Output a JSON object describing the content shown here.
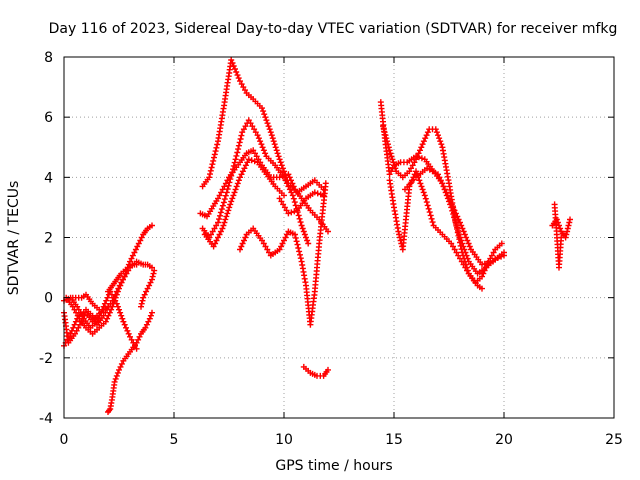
{
  "chart_data": {
    "type": "scatter",
    "title": "Day 116 of 2023, Sidereal Day-to-day VTEC variation (SDTVAR) for receiver mfkg",
    "xlabel": "GPS time / hours",
    "ylabel": "SDTVAR / TECUs",
    "xlim": [
      0,
      25
    ],
    "ylim": [
      -4,
      8
    ],
    "x_ticks": [
      0,
      5,
      10,
      15,
      20,
      25
    ],
    "y_ticks": [
      -4,
      -2,
      0,
      2,
      4,
      6,
      8
    ],
    "x_tick_labels": [
      "0",
      "5",
      "10",
      "15",
      "20",
      "25"
    ],
    "y_tick_labels": [
      "-4",
      "-2",
      "0",
      "2",
      "4",
      "6",
      "8"
    ],
    "grid": true,
    "legend": "none",
    "marker": "+",
    "color": "#ff0000",
    "series": [
      {
        "x": [
          0.0,
          0.2,
          0.5,
          0.8,
          1.0,
          1.3,
          1.5,
          1.8,
          2.0
        ],
        "y": [
          -0.5,
          -1.5,
          -1.2,
          -0.8,
          -0.5,
          -0.8,
          -0.6,
          -0.4,
          -0.3
        ]
      },
      {
        "x": [
          0.0,
          0.3,
          0.6,
          1.0,
          1.3,
          1.5,
          1.8,
          2.2,
          2.6,
          3.0,
          3.3,
          3.6,
          3.8,
          4.0
        ],
        "y": [
          -1.6,
          -1.2,
          -0.7,
          -0.4,
          -0.6,
          -0.9,
          -0.6,
          -0.1,
          0.5,
          1.0,
          1.2,
          1.1,
          1.1,
          1.0
        ]
      },
      {
        "x": [
          0.1,
          0.4,
          0.7,
          1.0,
          1.3,
          1.6,
          1.9,
          2.2,
          2.5,
          2.8,
          3.0,
          3.2,
          3.4,
          3.6,
          3.8,
          4.0
        ],
        "y": [
          0.0,
          -0.3,
          -0.7,
          -1.0,
          -1.2,
          -1.0,
          -0.8,
          -0.3,
          0.3,
          0.8,
          1.2,
          1.5,
          1.8,
          2.1,
          2.3,
          2.4
        ]
      },
      {
        "x": [
          0.0,
          0.3,
          0.6,
          0.9,
          1.2,
          1.5,
          1.8,
          2.1,
          2.4,
          2.7,
          3.0,
          3.3
        ],
        "y": [
          -0.1,
          0.0,
          -0.3,
          -0.7,
          -1.0,
          -0.8,
          -0.3,
          0.2,
          -0.2,
          -0.8,
          -1.3,
          -1.7
        ]
      },
      {
        "x": [
          0.4,
          0.8,
          1.0,
          1.3,
          1.6
        ],
        "y": [
          0.0,
          0.0,
          0.1,
          -0.2,
          -0.4
        ]
      },
      {
        "x": [
          2.0,
          2.2,
          2.4,
          2.6,
          2.9,
          3.1,
          3.3
        ],
        "y": [
          0.2,
          0.4,
          0.6,
          0.8,
          1.0,
          1.1,
          1.1
        ]
      },
      {
        "x": [
          2.0,
          2.1,
          2.2,
          2.3,
          2.5,
          2.7,
          3.0,
          3.3,
          3.5,
          3.7,
          3.9,
          4.0
        ],
        "y": [
          -3.8,
          -3.7,
          -3.3,
          -2.8,
          -2.4,
          -2.1,
          -1.8,
          -1.5,
          -1.2,
          -1.0,
          -0.7,
          -0.5
        ]
      },
      {
        "x": [
          3.5,
          3.6,
          3.8,
          4.0,
          4.1
        ],
        "y": [
          -0.3,
          0.0,
          0.3,
          0.6,
          0.9
        ]
      },
      {
        "x": [
          6.2,
          6.5,
          7.0,
          7.5,
          8.0,
          8.3,
          8.6,
          9.0,
          9.4,
          9.8,
          10.2,
          10.5,
          10.8,
          11.2,
          11.6,
          12.0
        ],
        "y": [
          2.8,
          2.7,
          3.3,
          4.0,
          4.5,
          4.8,
          4.9,
          4.4,
          4.0,
          4.0,
          4.1,
          3.6,
          3.3,
          2.9,
          2.6,
          2.2
        ]
      },
      {
        "x": [
          6.3,
          6.6,
          7.0,
          7.3,
          7.6,
          8.0,
          8.3,
          8.6,
          9.0,
          9.4,
          9.8,
          10.2,
          10.6,
          11.0,
          11.4,
          11.8
        ],
        "y": [
          3.7,
          4.0,
          5.2,
          6.5,
          7.9,
          7.2,
          6.8,
          6.6,
          6.3,
          5.5,
          4.6,
          3.8,
          3.5,
          3.7,
          3.9,
          3.6
        ]
      },
      {
        "x": [
          6.3,
          6.6,
          7.0,
          7.4,
          7.8,
          8.1,
          8.4,
          8.8,
          9.2,
          9.6,
          10.0,
          10.4,
          10.8,
          11.1
        ],
        "y": [
          2.3,
          2.0,
          2.5,
          3.5,
          4.6,
          5.5,
          5.9,
          5.4,
          4.7,
          4.4,
          4.0,
          3.4,
          2.4,
          1.8
        ]
      },
      {
        "x": [
          6.4,
          6.8,
          7.2,
          7.6,
          8.0,
          8.4,
          8.8,
          9.2,
          9.6,
          10.0
        ],
        "y": [
          2.1,
          1.7,
          2.3,
          3.2,
          4.0,
          4.6,
          4.5,
          4.1,
          3.7,
          3.4
        ]
      },
      {
        "x": [
          8.0,
          8.3,
          8.6,
          9.0,
          9.4,
          9.8,
          10.2,
          10.5,
          10.8,
          11.0,
          11.2,
          11.4,
          11.6,
          11.9
        ],
        "y": [
          1.6,
          2.1,
          2.3,
          1.9,
          1.4,
          1.6,
          2.2,
          2.1,
          1.2,
          0.4,
          -0.9,
          0.2,
          1.8,
          3.8
        ]
      },
      {
        "x": [
          9.8,
          10.2,
          10.6,
          11.0,
          11.4,
          11.8
        ],
        "y": [
          3.3,
          2.8,
          2.9,
          3.3,
          3.5,
          3.4
        ]
      },
      {
        "x": [
          10.9,
          11.2,
          11.5,
          11.8,
          12.0
        ],
        "y": [
          -2.3,
          -2.5,
          -2.6,
          -2.6,
          -2.4
        ]
      },
      {
        "x": [
          14.4,
          14.6,
          14.8,
          15.0,
          15.3,
          15.6,
          16.0,
          16.4,
          16.8,
          17.2,
          17.6,
          18.0,
          18.4,
          18.8,
          19.2,
          19.6,
          20.0
        ],
        "y": [
          6.5,
          5.2,
          4.1,
          4.4,
          4.5,
          4.5,
          4.7,
          4.6,
          4.2,
          3.8,
          3.0,
          2.0,
          1.2,
          0.8,
          1.0,
          1.3,
          1.4
        ]
      },
      {
        "x": [
          14.5,
          14.8,
          15.1,
          15.4,
          15.7,
          16.0,
          16.3,
          16.6,
          16.9,
          17.2,
          17.5,
          17.8,
          18.1,
          18.4,
          18.7,
          19.0,
          19.3,
          19.6,
          19.9
        ],
        "y": [
          5.7,
          4.9,
          4.2,
          4.0,
          4.2,
          4.6,
          5.1,
          5.6,
          5.6,
          5.0,
          3.8,
          2.5,
          1.5,
          0.8,
          0.5,
          0.7,
          1.2,
          1.6,
          1.8
        ]
      },
      {
        "x": [
          14.8,
          15.0,
          15.2,
          15.4,
          15.7,
          16.0,
          16.4,
          16.8,
          17.2,
          17.6,
          18.0,
          18.4,
          18.8,
          19.0
        ],
        "y": [
          3.9,
          3.0,
          2.2,
          1.6,
          3.7,
          4.2,
          3.4,
          2.4,
          2.1,
          1.8,
          1.3,
          0.8,
          0.4,
          0.3
        ]
      },
      {
        "x": [
          15.5,
          16.0,
          16.5,
          17.0,
          17.5,
          18.0,
          18.5,
          19.0,
          19.5,
          20.0
        ],
        "y": [
          3.6,
          4.0,
          4.3,
          4.1,
          3.3,
          2.5,
          1.6,
          1.1,
          1.2,
          1.5
        ]
      },
      {
        "x": [
          22.2,
          22.4,
          22.6,
          22.8,
          23.0
        ],
        "y": [
          2.4,
          2.6,
          2.2,
          2.0,
          2.6
        ]
      },
      {
        "x": [
          22.3,
          22.4,
          22.5,
          22.6
        ],
        "y": [
          3.1,
          2.1,
          1.0,
          2.0
        ]
      }
    ]
  }
}
